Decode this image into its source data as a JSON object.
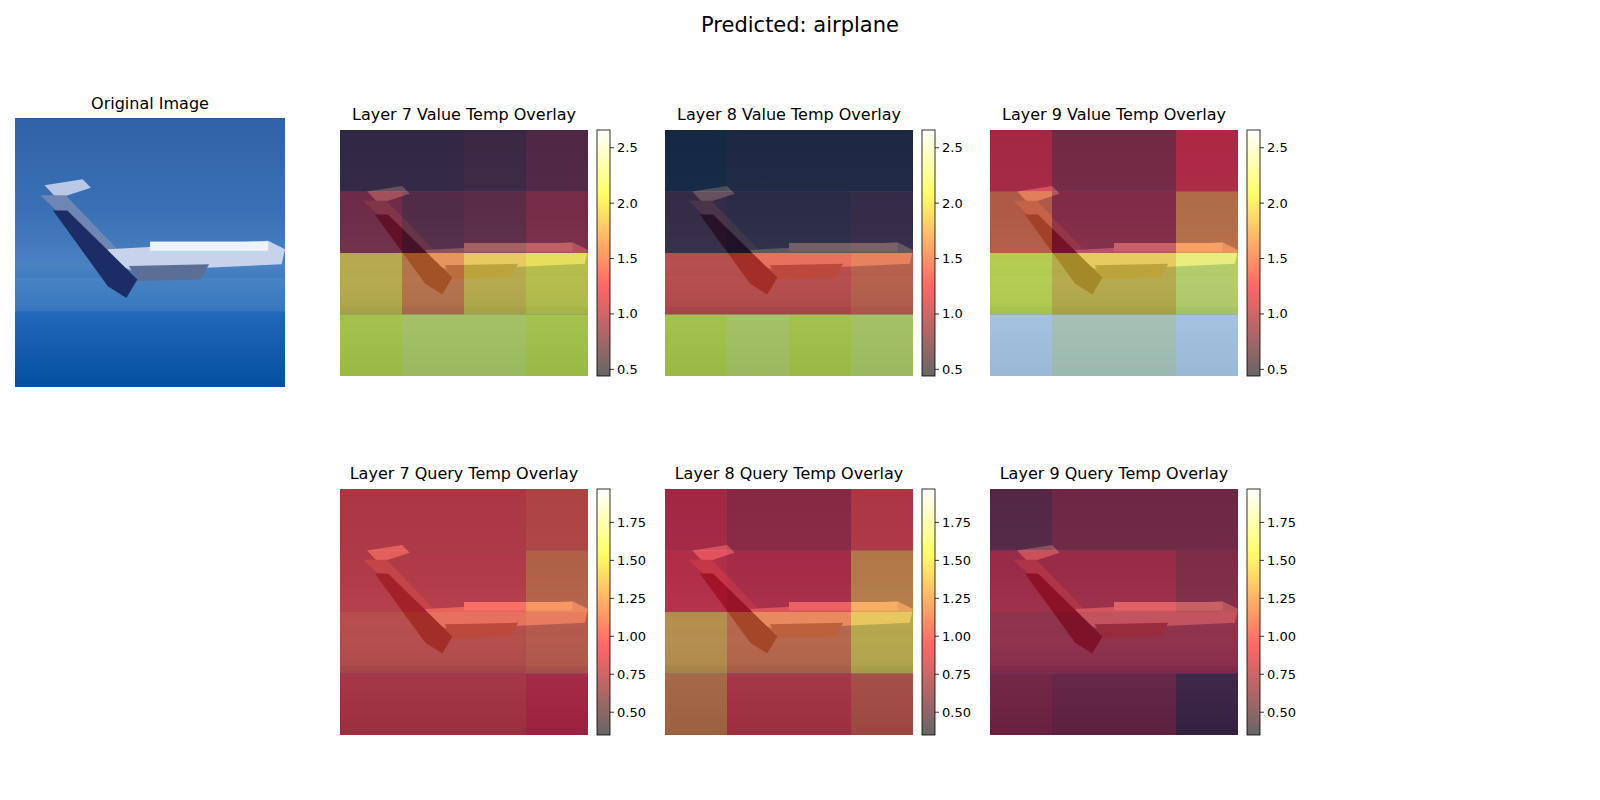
{
  "title": "Predicted: airplane",
  "image_title": "Original Image",
  "chart_data": [
    {
      "type": "heatmap",
      "title": "Layer 7 Value Temp Overlay",
      "color": "hot",
      "values": [
        [
          0.6,
          0.6,
          0.65,
          0.75
        ],
        [
          0.9,
          0.75,
          0.8,
          0.95
        ],
        [
          1.9,
          1.6,
          1.9,
          2.0
        ],
        [
          2.1,
          2.2,
          2.2,
          2.1
        ]
      ],
      "colorbar_range": [
        0.44,
        2.66
      ],
      "colorbar_ticks": [
        0.5,
        {
          "value": 1.0,
          "label": "1.0"
        },
        1.5,
        {
          "value": 2.0,
          "label": "2.0"
        },
        2.5
      ]
    },
    {
      "type": "heatmap",
      "title": "Layer 8 Value Temp Overlay",
      "color": "hot",
      "values": [
        [
          0.45,
          0.5,
          0.5,
          0.5
        ],
        [
          0.6,
          0.55,
          0.55,
          0.6
        ],
        [
          1.4,
          1.4,
          1.4,
          1.5
        ],
        [
          2.1,
          2.2,
          2.1,
          2.2
        ]
      ],
      "colorbar_range": [
        0.44,
        2.66
      ],
      "colorbar_ticks": [
        0.5,
        {
          "value": 1.0,
          "label": "1.0"
        },
        1.5,
        {
          "value": 2.0,
          "label": "2.0"
        },
        2.5
      ]
    },
    {
      "type": "heatmap",
      "title": "Layer 9 Value Temp Overlay",
      "color": "hot",
      "values": [
        [
          1.2,
          0.95,
          0.95,
          1.25
        ],
        [
          1.5,
          1.0,
          1.0,
          1.6
        ],
        [
          2.1,
          1.9,
          1.9,
          2.2
        ],
        [
          2.65,
          2.5,
          2.5,
          2.65
        ]
      ],
      "colorbar_range": [
        0.44,
        2.66
      ],
      "colorbar_ticks": [
        0.5,
        {
          "value": 1.0,
          "label": "1.0"
        },
        1.5,
        {
          "value": 2.0,
          "label": "2.0"
        },
        2.5
      ]
    },
    {
      "type": "heatmap",
      "title": "Layer 7 Query Temp Overlay",
      "color": "hot",
      "values": [
        [
          1.0,
          1.0,
          1.0,
          1.05
        ],
        [
          1.0,
          1.0,
          1.0,
          1.15
        ],
        [
          1.05,
          1.05,
          1.05,
          1.1
        ],
        [
          1.0,
          1.0,
          1.0,
          0.95
        ]
      ],
      "colorbar_range": [
        0.35,
        1.97
      ],
      "colorbar_ticks": [
        {
          "value": 0.5,
          "label": "0.50"
        },
        0.75,
        {
          "value": 1.0,
          "label": "1.00"
        },
        1.25,
        {
          "value": 1.5,
          "label": "1.50"
        },
        1.75
      ]
    },
    {
      "type": "heatmap",
      "title": "Layer 8 Query Temp Overlay",
      "color": "hot",
      "values": [
        [
          0.9,
          0.8,
          0.8,
          1.0
        ],
        [
          0.95,
          0.9,
          0.9,
          1.25
        ],
        [
          1.3,
          1.15,
          1.15,
          1.4
        ],
        [
          1.2,
          1.0,
          1.0,
          1.1
        ]
      ],
      "colorbar_range": [
        0.35,
        1.97
      ],
      "colorbar_ticks": [
        {
          "value": 0.5,
          "label": "0.50"
        },
        0.75,
        {
          "value": 1.0,
          "label": "1.00"
        },
        1.25,
        {
          "value": 1.5,
          "label": "1.50"
        },
        1.75
      ]
    },
    {
      "type": "heatmap",
      "title": "Layer 9 Query Temp Overlay",
      "color": "hot",
      "values": [
        [
          0.6,
          0.7,
          0.7,
          0.7
        ],
        [
          0.85,
          0.85,
          0.85,
          0.75
        ],
        [
          0.8,
          0.8,
          0.8,
          0.8
        ],
        [
          0.75,
          0.7,
          0.7,
          0.55
        ]
      ],
      "colorbar_range": [
        0.35,
        1.97
      ],
      "colorbar_ticks": [
        {
          "value": 0.5,
          "label": "0.50"
        },
        0.75,
        {
          "value": 1.0,
          "label": "1.00"
        },
        1.25,
        {
          "value": 1.5,
          "label": "1.50"
        },
        1.75
      ]
    }
  ]
}
